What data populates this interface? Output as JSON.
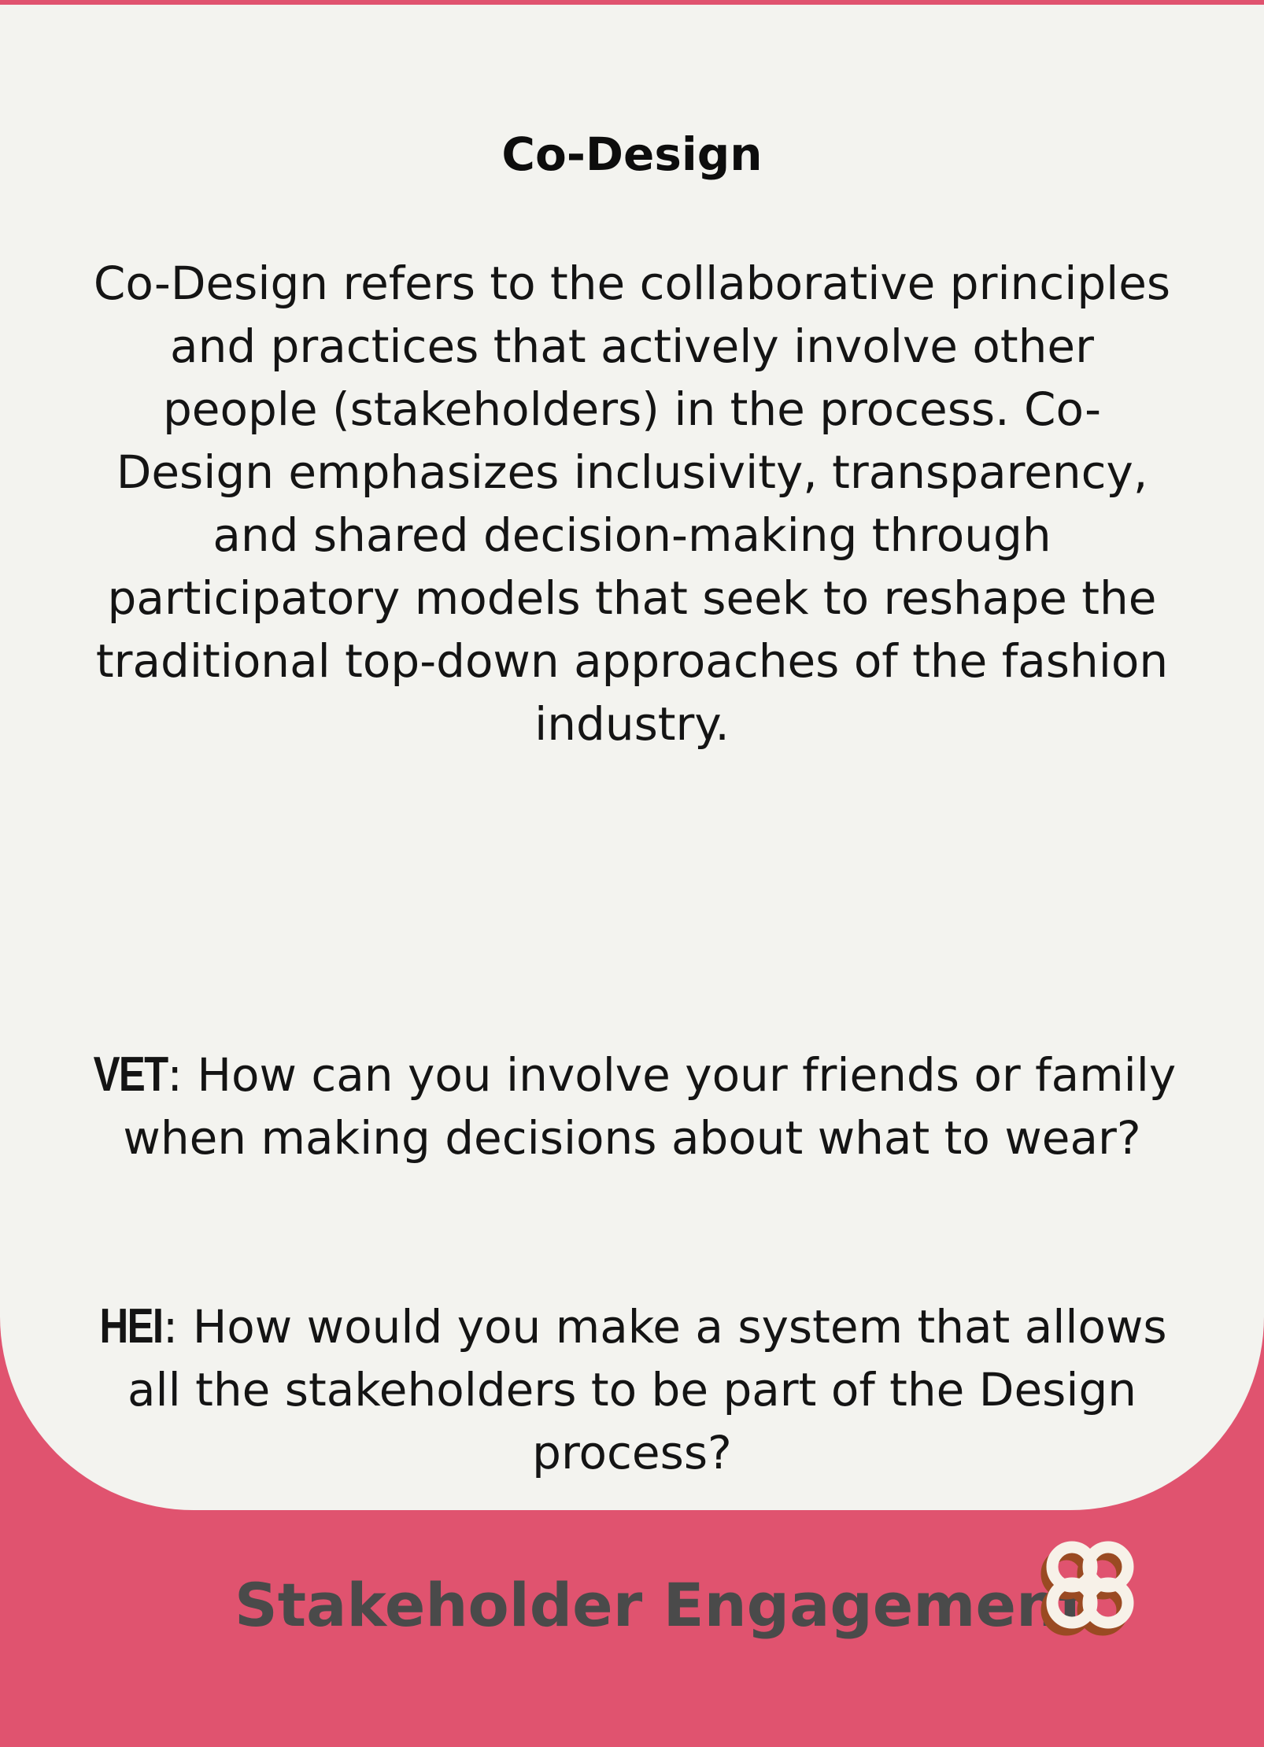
{
  "card": {
    "title": "Co-Design",
    "definition": "Co-Design refers to the collaborative principles and practices that actively involve other people (stakeholders) in the process. Co-Design emphasizes inclusivity, transparency, and shared decision-making through participatory models that seek to reshape the traditional top-down approaches of the fashion industry.",
    "questions": [
      {
        "tag": "VET",
        "text": ": How can you involve your friends or family when making decisions about what to wear?"
      },
      {
        "tag": "HEI",
        "text": ": How would you make a system that allows all the stakeholders to be part of the Design process?"
      }
    ],
    "category": "Stakeholder Engagement",
    "category_icon": "clover-knot-icon"
  },
  "colors": {
    "accent": "#e0536f",
    "panel": "#f3f3ef",
    "text": "#141414",
    "category_text": "#4a4a4a",
    "icon_fill": "#f7f1e8",
    "icon_shadow": "#9a4a22"
  }
}
